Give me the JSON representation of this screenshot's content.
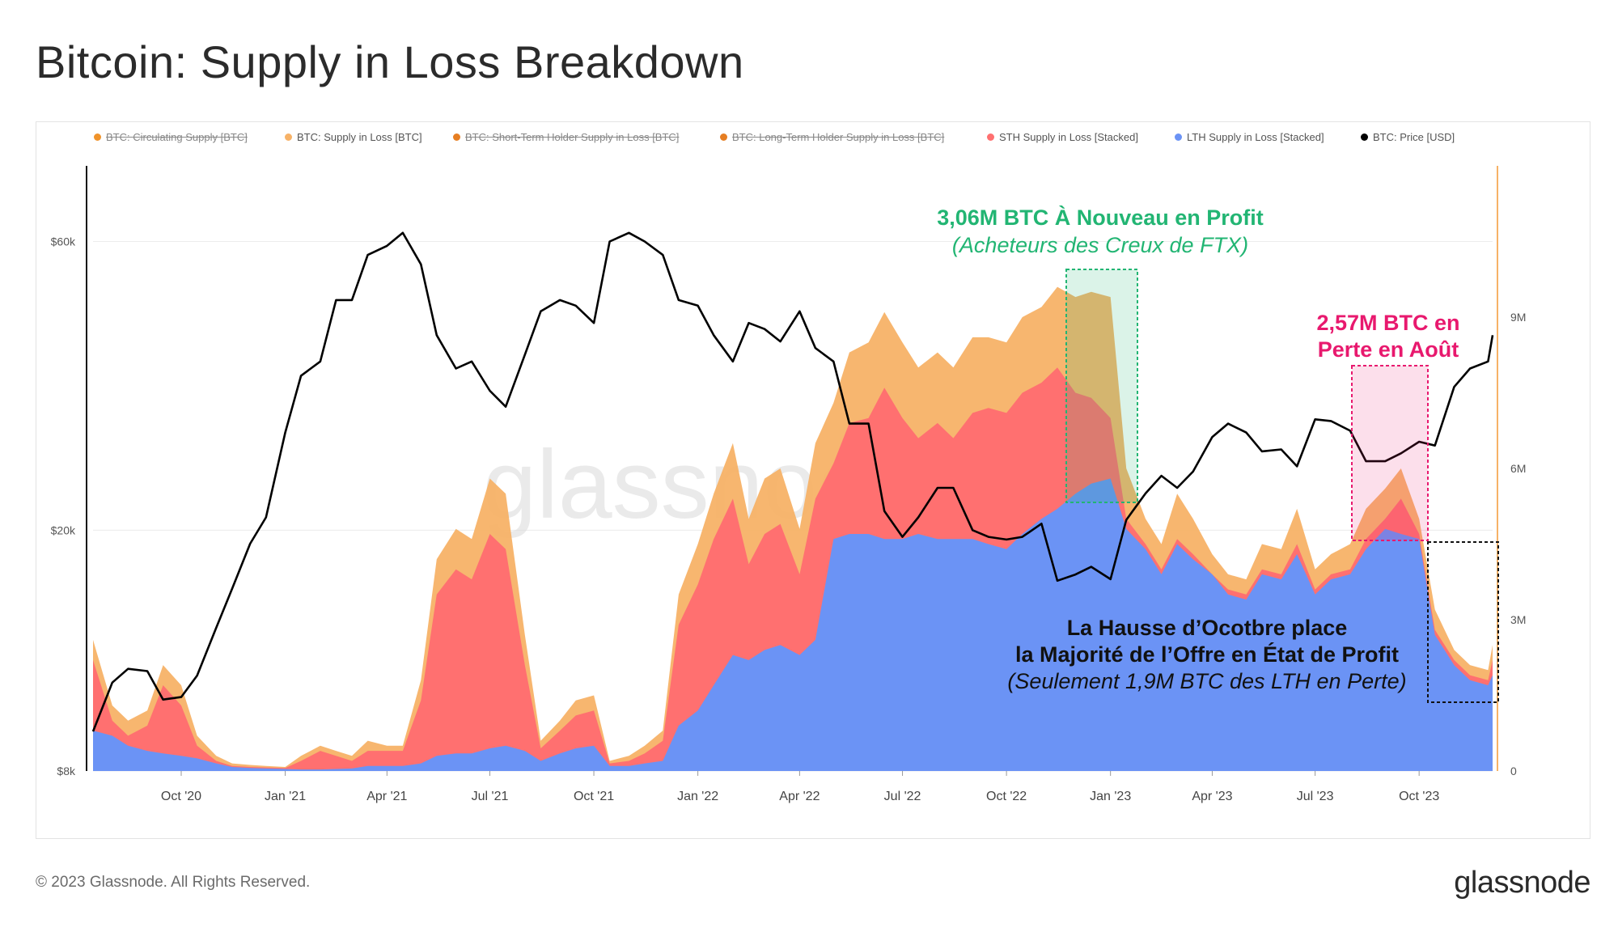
{
  "page": {
    "title": "Bitcoin: Supply in Loss Breakdown",
    "copyright": "© 2023 Glassnode. All Rights Reserved.",
    "logo": "glassnode",
    "watermark": "glassnode"
  },
  "legend": [
    {
      "label": "BTC: Circulating Supply [BTC]",
      "color": "#f0932b",
      "hidden": true
    },
    {
      "label": "BTC: Supply in Loss [BTC]",
      "color": "#f7b267",
      "hidden": false
    },
    {
      "label": "BTC: Short-Term Holder Supply in Loss [BTC]",
      "color": "#e67e22",
      "hidden": true
    },
    {
      "label": "BTC: Long-Term Holder Supply in Loss [BTC]",
      "color": "#e67e22",
      "hidden": true
    },
    {
      "label": "STH Supply in Loss [Stacked]",
      "color": "#ff7070",
      "hidden": false
    },
    {
      "label": "LTH Supply in Loss [Stacked]",
      "color": "#6b93f5",
      "hidden": false
    },
    {
      "label": "BTC: Price [USD]",
      "color": "#000000",
      "hidden": false
    }
  ],
  "annotations": {
    "ftx_title": "3,06M BTC À Nouveau en Profit",
    "ftx_sub": "(Acheteurs des Creux de FTX)",
    "aug_line1": "2,57M BTC en",
    "aug_line2": "Perte en Août",
    "oct_line1": "La Hausse d’Ocotbre place",
    "oct_line2": "la Majorité de l’Offre en État de Profit",
    "oct_line3": "(Seulement 1,9M BTC des LTH en Perte)"
  },
  "colors": {
    "supply_in_loss": "#f7b267",
    "sth": "#ff7070",
    "lth": "#6b93f5",
    "price": "#000000",
    "green_box": "#22b573",
    "pink_box": "#e8196e",
    "axis_right": "#f7b267"
  },
  "chart_data": {
    "type": "area",
    "x_type": "date",
    "x_ticks": [
      "Oct '20",
      "Jan '21",
      "Apr '21",
      "Jul '21",
      "Oct '21",
      "Jan '22",
      "Apr '22",
      "Jul '22",
      "Oct '22",
      "Jan '23",
      "Apr '23",
      "Jul '23",
      "Oct '23"
    ],
    "x_tick_dates": [
      "2020-10-01",
      "2021-01-01",
      "2021-04-01",
      "2021-07-01",
      "2021-10-01",
      "2022-01-01",
      "2022-04-01",
      "2022-07-01",
      "2022-10-01",
      "2023-01-01",
      "2023-04-01",
      "2023-07-01",
      "2023-10-01"
    ],
    "x_range": [
      "2020-07-15",
      "2023-12-05"
    ],
    "y_left": {
      "label": "",
      "scale": "log",
      "ticks": [
        "$8k",
        "$20k",
        "$60k"
      ],
      "tick_values": [
        8000,
        20000,
        60000
      ],
      "range": [
        8000,
        80000
      ]
    },
    "y_right": {
      "label": "",
      "scale": "linear",
      "ticks": [
        "0",
        "3M",
        "6M",
        "9M"
      ],
      "tick_values": [
        0,
        3000000,
        6000000,
        9000000
      ],
      "range": [
        0,
        12000000
      ]
    },
    "grid": true,
    "legend_position": "top",
    "dates": [
      "2020-07-15",
      "2020-08-01",
      "2020-08-15",
      "2020-09-01",
      "2020-09-15",
      "2020-10-01",
      "2020-10-15",
      "2020-11-01",
      "2020-11-15",
      "2020-12-01",
      "2020-12-15",
      "2021-01-01",
      "2021-01-15",
      "2021-02-01",
      "2021-02-15",
      "2021-03-01",
      "2021-03-15",
      "2021-04-01",
      "2021-04-15",
      "2021-05-01",
      "2021-05-15",
      "2021-06-01",
      "2021-06-15",
      "2021-07-01",
      "2021-07-15",
      "2021-08-01",
      "2021-08-15",
      "2021-09-01",
      "2021-09-15",
      "2021-10-01",
      "2021-10-15",
      "2021-11-01",
      "2021-11-15",
      "2021-12-01",
      "2021-12-15",
      "2022-01-01",
      "2022-01-15",
      "2022-02-01",
      "2022-02-15",
      "2022-03-01",
      "2022-03-15",
      "2022-04-01",
      "2022-04-15",
      "2022-05-01",
      "2022-05-15",
      "2022-06-01",
      "2022-06-15",
      "2022-07-01",
      "2022-07-15",
      "2022-08-01",
      "2022-08-15",
      "2022-09-01",
      "2022-09-15",
      "2022-10-01",
      "2022-10-15",
      "2022-11-01",
      "2022-11-15",
      "2022-12-01",
      "2022-12-15",
      "2023-01-01",
      "2023-01-15",
      "2023-02-01",
      "2023-02-15",
      "2023-03-01",
      "2023-03-15",
      "2023-04-01",
      "2023-04-15",
      "2023-05-01",
      "2023-05-15",
      "2023-06-01",
      "2023-06-15",
      "2023-07-01",
      "2023-07-15",
      "2023-08-01",
      "2023-08-15",
      "2023-09-01",
      "2023-09-15",
      "2023-10-01",
      "2023-10-15",
      "2023-11-01",
      "2023-11-15",
      "2023-12-01",
      "2023-12-05"
    ],
    "series": [
      {
        "name": "BTC: Price [USD]",
        "axis": "left",
        "values": [
          9300,
          11200,
          11800,
          11700,
          10500,
          10600,
          11500,
          13800,
          16000,
          19000,
          21000,
          29000,
          36000,
          38000,
          48000,
          48000,
          57000,
          59000,
          62000,
          55000,
          42000,
          37000,
          38000,
          34000,
          32000,
          39000,
          46000,
          48000,
          47000,
          44000,
          60000,
          62000,
          60000,
          57000,
          48000,
          47000,
          42000,
          38000,
          44000,
          43000,
          41000,
          46000,
          40000,
          38000,
          30000,
          30000,
          21500,
          19500,
          21000,
          23500,
          23500,
          20000,
          19500,
          19300,
          19500,
          20500,
          16500,
          16900,
          17400,
          16600,
          20800,
          23000,
          24600,
          23500,
          25000,
          28500,
          30000,
          29000,
          27000,
          27200,
          25500,
          30500,
          30300,
          29200,
          26000,
          26000,
          26800,
          28000,
          27600,
          34500,
          37000,
          38000,
          42000
        ]
      },
      {
        "name": "BTC: Supply in Loss [BTC]",
        "axis": "right",
        "values": [
          2600000,
          1300000,
          1000000,
          1200000,
          2100000,
          1700000,
          700000,
          300000,
          150000,
          120000,
          100000,
          80000,
          300000,
          500000,
          400000,
          300000,
          600000,
          500000,
          500000,
          1800000,
          4200000,
          4800000,
          4600000,
          5800000,
          5500000,
          2700000,
          600000,
          1000000,
          1400000,
          1500000,
          200000,
          300000,
          500000,
          800000,
          3500000,
          4500000,
          5500000,
          6500000,
          5000000,
          5800000,
          6000000,
          4800000,
          6500000,
          7300000,
          8300000,
          8500000,
          9100000,
          8500000,
          8000000,
          8300000,
          8000000,
          8600000,
          8600000,
          8500000,
          9000000,
          9200000,
          9600000,
          9400000,
          9500000,
          9400000,
          6000000,
          5000000,
          4500000,
          5500000,
          5000000,
          4300000,
          3900000,
          3800000,
          4500000,
          4400000,
          5200000,
          4000000,
          4300000,
          4500000,
          5200000,
          5600000,
          6000000,
          5000000,
          3200000,
          2400000,
          2100000,
          2000000,
          2500000
        ]
      },
      {
        "name": "STH Supply in Loss [Stacked]",
        "axis": "right",
        "values": [
          2200000,
          1000000,
          700000,
          900000,
          1700000,
          1300000,
          500000,
          200000,
          100000,
          80000,
          70000,
          60000,
          200000,
          400000,
          300000,
          200000,
          400000,
          400000,
          400000,
          1400000,
          3500000,
          4000000,
          3800000,
          4700000,
          4400000,
          2100000,
          450000,
          800000,
          1100000,
          1200000,
          150000,
          200000,
          350000,
          600000,
          2900000,
          3700000,
          4600000,
          5400000,
          4100000,
          4700000,
          4900000,
          3900000,
          5400000,
          6100000,
          6900000,
          7000000,
          7600000,
          7000000,
          6600000,
          6900000,
          6600000,
          7100000,
          7200000,
          7100000,
          7500000,
          7700000,
          8000000,
          7500000,
          7400000,
          7000000,
          5000000,
          4500000,
          4000000,
          4600000,
          4300000,
          3900000,
          3600000,
          3500000,
          4000000,
          3900000,
          4500000,
          3600000,
          3900000,
          4000000,
          4600000,
          5000000,
          5400000,
          4700000,
          2800000,
          2200000,
          1900000,
          1800000,
          2200000
        ]
      },
      {
        "name": "LTH Supply in Loss [Stacked]",
        "axis": "right",
        "values": [
          800000,
          700000,
          500000,
          400000,
          350000,
          300000,
          250000,
          150000,
          80000,
          60000,
          50000,
          40000,
          30000,
          30000,
          40000,
          50000,
          100000,
          100000,
          100000,
          150000,
          300000,
          350000,
          350000,
          450000,
          500000,
          400000,
          200000,
          350000,
          450000,
          500000,
          100000,
          100000,
          150000,
          200000,
          900000,
          1200000,
          1700000,
          2300000,
          2200000,
          2400000,
          2500000,
          2300000,
          2600000,
          4600000,
          4700000,
          4700000,
          4600000,
          4600000,
          4700000,
          4600000,
          4600000,
          4600000,
          4500000,
          4400000,
          4700000,
          5000000,
          5200000,
          5500000,
          5700000,
          5800000,
          4800000,
          4400000,
          3900000,
          4500000,
          4200000,
          3900000,
          3500000,
          3400000,
          3900000,
          3800000,
          4300000,
          3500000,
          3800000,
          3900000,
          4400000,
          4800000,
          4700000,
          4600000,
          2700000,
          2100000,
          1800000,
          1700000,
          1900000
        ]
      }
    ]
  }
}
